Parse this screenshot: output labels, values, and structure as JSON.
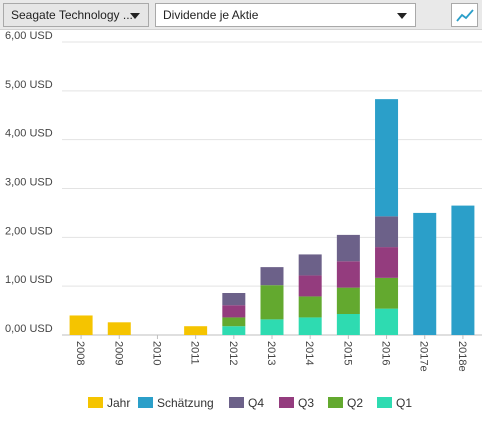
{
  "toolbar": {
    "company_select": "Seagate Technology ...",
    "metric_select": "Dividende je Aktie",
    "chart_type_icon": "line-chart-icon"
  },
  "colors": {
    "Jahr": "#f5c400",
    "Schätzung": "#2b9fc9",
    "Q4": "#6c6189",
    "Q3": "#943c7e",
    "Q2": "#63a92f",
    "Q1": "#2edbb1"
  },
  "chart_data": {
    "type": "bar",
    "stacked": true,
    "categories": [
      "2008",
      "2009",
      "2010",
      "2011",
      "2012",
      "2013",
      "2014",
      "2015",
      "2016",
      "2017e",
      "2018e"
    ],
    "ylim": [
      0,
      6
    ],
    "yticks": [
      "0,00 USD",
      "1,00 USD",
      "2,00 USD",
      "3,00 USD",
      "4,00 USD",
      "5,00 USD",
      "6,00 USD"
    ],
    "grid": true,
    "legend_position": "bottom",
    "series": [
      {
        "name": "Jahr",
        "values": [
          0.4,
          0.26,
          0,
          0.18,
          0,
          0,
          0,
          0,
          0,
          0,
          0
        ]
      },
      {
        "name": "Q1",
        "values": [
          0,
          0,
          0,
          0,
          0.18,
          0.32,
          0.36,
          0.43,
          0.54,
          0,
          0
        ]
      },
      {
        "name": "Q2",
        "values": [
          0,
          0,
          0,
          0,
          0.18,
          0.7,
          0.43,
          0.54,
          0.63,
          0,
          0
        ]
      },
      {
        "name": "Q3",
        "values": [
          0,
          0,
          0,
          0,
          0.25,
          0,
          0.43,
          0.54,
          0.63,
          0,
          0
        ]
      },
      {
        "name": "Q4",
        "values": [
          0,
          0,
          0,
          0,
          0.25,
          0.37,
          0.43,
          0.54,
          0.63,
          0,
          0
        ]
      },
      {
        "name": "Schätzung",
        "values": [
          0,
          0,
          0,
          0,
          0,
          0,
          0,
          0,
          2.4,
          2.5,
          2.65
        ]
      }
    ]
  },
  "legend": [
    "Jahr",
    "Schätzung",
    "Q4",
    "Q3",
    "Q2",
    "Q1"
  ]
}
